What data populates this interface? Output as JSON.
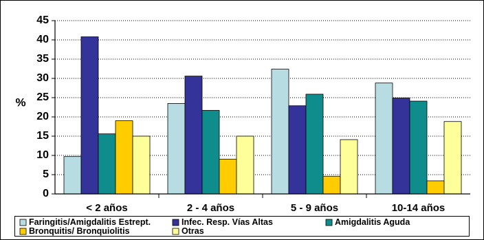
{
  "chart_data": {
    "type": "bar",
    "title": "",
    "xlabel": "",
    "ylabel": "%",
    "ylim": [
      0,
      45
    ],
    "yticks": [
      0,
      5,
      10,
      15,
      20,
      25,
      30,
      35,
      40,
      45
    ],
    "grid": true,
    "legend_position": "bottom",
    "categories": [
      "< 2 años",
      "2 - 4 años",
      "5 - 9 años",
      "10-14 años"
    ],
    "series": [
      {
        "name": "Faringitis/Amigdalitis Estrept.",
        "color": "#b7dde3",
        "values": [
          9.7,
          23.5,
          32.4,
          28.8
        ]
      },
      {
        "name": "Infec. Resp. Vías Altas",
        "color": "#333399",
        "values": [
          40.8,
          30.6,
          22.9,
          24.9
        ]
      },
      {
        "name": "Amigdalitis Aguda",
        "color": "#0f8c8c",
        "values": [
          15.6,
          21.7,
          25.9,
          24.1
        ]
      },
      {
        "name": "Bronquitis/ Bronquiolitis",
        "color": "#ffcc00",
        "values": [
          19.0,
          9.0,
          4.6,
          3.4
        ]
      },
      {
        "name": "Otras",
        "color": "#ffff99",
        "values": [
          15.0,
          15.0,
          14.1,
          18.8
        ]
      }
    ]
  }
}
